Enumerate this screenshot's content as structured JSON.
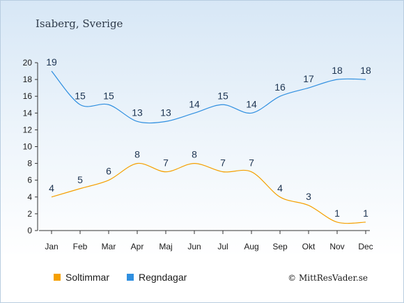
{
  "chart_data": {
    "type": "line",
    "title": "Isaberg, Sverige",
    "categories": [
      "Jan",
      "Feb",
      "Mar",
      "Apr",
      "Maj",
      "Jun",
      "Jul",
      "Aug",
      "Sep",
      "Okt",
      "Nov",
      "Dec"
    ],
    "ylim": [
      0,
      20
    ],
    "yticks": [
      0,
      2,
      4,
      6,
      8,
      10,
      12,
      14,
      16,
      18,
      20
    ],
    "grid": false,
    "legend_position": "bottom",
    "series": [
      {
        "name": "Soltimmar",
        "color": "#f5a000",
        "values": [
          4,
          5,
          6,
          8,
          7,
          8,
          7,
          7,
          4,
          3,
          1,
          1
        ]
      },
      {
        "name": "Regndagar",
        "color": "#2f8fe0",
        "values": [
          19,
          15,
          15,
          13,
          13,
          14,
          15,
          14,
          16,
          17,
          18,
          18
        ]
      }
    ]
  },
  "credit": "© MittResVader.se"
}
